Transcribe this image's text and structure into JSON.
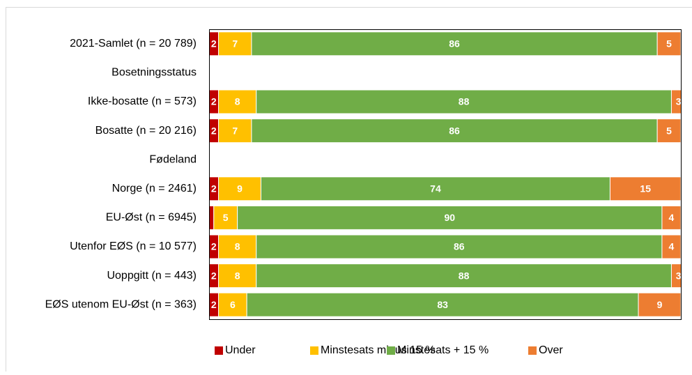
{
  "chart_data": {
    "type": "bar",
    "orientation": "horizontal",
    "stacked": true,
    "categories": [
      "2021-Samlet (n = 20 789)",
      "Bosetningsstatus",
      "Ikke-bosatte (n = 573)",
      "Bosatte (n = 20 216)",
      "Fødeland",
      "Norge (n = 2461)",
      "EU-Øst (n = 6945)",
      "Utenfor EØS (n = 10 577)",
      "Uoppgitt (n = 443)",
      "EØS utenom EU-Øst (n = 363)"
    ],
    "series": [
      {
        "name": "Under",
        "color": "#c00000",
        "values": [
          2,
          null,
          2,
          2,
          null,
          2,
          1,
          2,
          2,
          2
        ],
        "value_labels": [
          "2",
          null,
          "2",
          "2",
          null,
          "2",
          null,
          "2",
          "2",
          "2"
        ]
      },
      {
        "name": "Minstesats minus 15 %",
        "color": "#ffc000",
        "values": [
          7,
          null,
          8,
          7,
          null,
          9,
          5,
          8,
          8,
          6
        ]
      },
      {
        "name": "Minstesats + 15 %",
        "color": "#70ad47",
        "values": [
          86,
          null,
          88,
          86,
          null,
          74,
          90,
          86,
          88,
          83
        ]
      },
      {
        "name": "Over",
        "color": "#ed7d31",
        "values": [
          5,
          null,
          3,
          5,
          null,
          15,
          4,
          4,
          3,
          9
        ]
      }
    ],
    "xlim": [
      0,
      100
    ],
    "legend": "bottom"
  }
}
